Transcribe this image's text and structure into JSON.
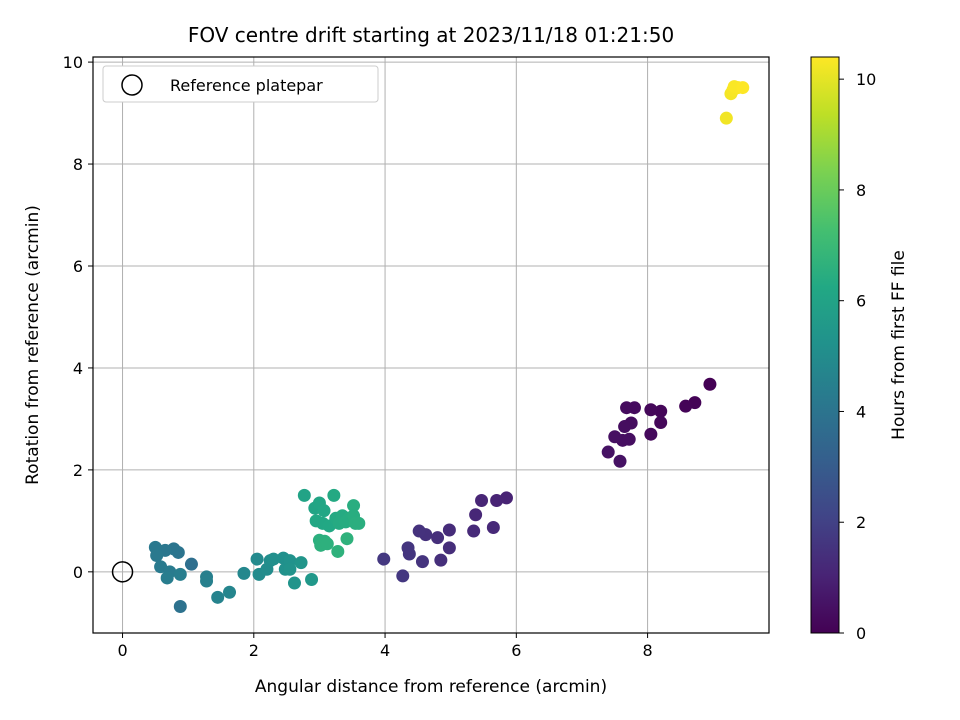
{
  "chart_data": {
    "type": "scatter",
    "title": "FOV centre drift starting at 2023/11/18 01:21:50",
    "xlabel": "Angular distance from reference (arcmin)",
    "ylabel": "Rotation from reference (arcmin)",
    "xlim": [
      -0.45,
      9.85
    ],
    "ylim": [
      -1.2,
      10.1
    ],
    "xticks": [
      0,
      2,
      4,
      6,
      8
    ],
    "yticks": [
      0,
      2,
      4,
      6,
      8,
      10
    ],
    "grid": true,
    "legend": {
      "placement": "top-left",
      "entries": [
        "Reference platepar"
      ]
    },
    "reference_point": {
      "x": 0,
      "y": 0
    },
    "colorbar": {
      "label": "Hours from first FF file",
      "range": [
        0,
        10.4
      ],
      "ticks": [
        0,
        2,
        4,
        6,
        8,
        10
      ],
      "colormap": "viridis"
    },
    "points": [
      {
        "x": 8.95,
        "y": 3.68,
        "c": 0.0
      },
      {
        "x": 8.72,
        "y": 3.32,
        "c": 0.05
      },
      {
        "x": 8.58,
        "y": 3.25,
        "c": 0.1
      },
      {
        "x": 8.2,
        "y": 3.15,
        "c": 0.15
      },
      {
        "x": 8.05,
        "y": 3.18,
        "c": 0.2
      },
      {
        "x": 8.2,
        "y": 2.93,
        "c": 0.2
      },
      {
        "x": 8.05,
        "y": 2.7,
        "c": 0.25
      },
      {
        "x": 7.8,
        "y": 3.22,
        "c": 0.3
      },
      {
        "x": 7.68,
        "y": 3.22,
        "c": 0.3
      },
      {
        "x": 7.75,
        "y": 2.92,
        "c": 0.35
      },
      {
        "x": 7.65,
        "y": 2.85,
        "c": 0.35
      },
      {
        "x": 7.72,
        "y": 2.6,
        "c": 0.4
      },
      {
        "x": 7.62,
        "y": 2.58,
        "c": 0.4
      },
      {
        "x": 7.5,
        "y": 2.65,
        "c": 0.45
      },
      {
        "x": 7.4,
        "y": 2.35,
        "c": 0.5
      },
      {
        "x": 7.58,
        "y": 2.17,
        "c": 0.5
      },
      {
        "x": 5.85,
        "y": 1.45,
        "c": 1.0
      },
      {
        "x": 5.7,
        "y": 1.4,
        "c": 1.05
      },
      {
        "x": 5.47,
        "y": 1.4,
        "c": 1.1
      },
      {
        "x": 5.38,
        "y": 1.12,
        "c": 1.15
      },
      {
        "x": 5.65,
        "y": 0.87,
        "c": 1.2
      },
      {
        "x": 5.35,
        "y": 0.8,
        "c": 1.25
      },
      {
        "x": 4.98,
        "y": 0.82,
        "c": 1.3
      },
      {
        "x": 4.98,
        "y": 0.47,
        "c": 1.35
      },
      {
        "x": 4.85,
        "y": 0.23,
        "c": 1.4
      },
      {
        "x": 4.8,
        "y": 0.67,
        "c": 1.4
      },
      {
        "x": 4.62,
        "y": 0.73,
        "c": 1.45
      },
      {
        "x": 4.52,
        "y": 0.8,
        "c": 1.5
      },
      {
        "x": 4.57,
        "y": 0.2,
        "c": 1.55
      },
      {
        "x": 4.37,
        "y": 0.35,
        "c": 1.6
      },
      {
        "x": 4.35,
        "y": 0.47,
        "c": 1.6
      },
      {
        "x": 4.27,
        "y": -0.08,
        "c": 1.65
      },
      {
        "x": 3.98,
        "y": 0.25,
        "c": 1.7
      },
      {
        "x": 1.05,
        "y": 0.15,
        "c": 3.8
      },
      {
        "x": 0.88,
        "y": -0.68,
        "c": 3.9
      },
      {
        "x": 0.85,
        "y": 0.38,
        "c": 4.0
      },
      {
        "x": 0.78,
        "y": 0.45,
        "c": 4.05
      },
      {
        "x": 0.65,
        "y": 0.42,
        "c": 4.1
      },
      {
        "x": 0.5,
        "y": 0.48,
        "c": 4.15
      },
      {
        "x": 0.52,
        "y": 0.32,
        "c": 4.2
      },
      {
        "x": 0.58,
        "y": 0.1,
        "c": 4.25
      },
      {
        "x": 0.72,
        "y": 0.0,
        "c": 4.3
      },
      {
        "x": 0.68,
        "y": -0.12,
        "c": 4.35
      },
      {
        "x": 0.88,
        "y": -0.05,
        "c": 4.4
      },
      {
        "x": 1.28,
        "y": -0.1,
        "c": 4.45
      },
      {
        "x": 1.28,
        "y": -0.18,
        "c": 4.5
      },
      {
        "x": 1.45,
        "y": -0.5,
        "c": 4.6
      },
      {
        "x": 1.63,
        "y": -0.4,
        "c": 4.7
      },
      {
        "x": 1.85,
        "y": -0.03,
        "c": 4.8
      },
      {
        "x": 2.05,
        "y": 0.25,
        "c": 4.9
      },
      {
        "x": 2.08,
        "y": -0.05,
        "c": 4.95
      },
      {
        "x": 2.2,
        "y": 0.05,
        "c": 5.0
      },
      {
        "x": 2.25,
        "y": 0.22,
        "c": 5.05
      },
      {
        "x": 2.3,
        "y": 0.25,
        "c": 5.1
      },
      {
        "x": 2.45,
        "y": 0.27,
        "c": 5.15
      },
      {
        "x": 2.48,
        "y": 0.05,
        "c": 5.2
      },
      {
        "x": 2.55,
        "y": 0.22,
        "c": 5.25
      },
      {
        "x": 2.55,
        "y": 0.05,
        "c": 5.3
      },
      {
        "x": 2.62,
        "y": -0.22,
        "c": 5.35
      },
      {
        "x": 2.72,
        "y": 0.18,
        "c": 5.4
      },
      {
        "x": 2.88,
        "y": -0.15,
        "c": 5.5
      },
      {
        "x": 2.77,
        "y": 1.5,
        "c": 6.0
      },
      {
        "x": 2.93,
        "y": 1.25,
        "c": 6.05
      },
      {
        "x": 3.0,
        "y": 1.35,
        "c": 6.1
      },
      {
        "x": 3.07,
        "y": 1.2,
        "c": 6.15
      },
      {
        "x": 2.95,
        "y": 1.0,
        "c": 6.2
      },
      {
        "x": 3.05,
        "y": 0.95,
        "c": 6.2
      },
      {
        "x": 3.15,
        "y": 0.9,
        "c": 6.25
      },
      {
        "x": 3.22,
        "y": 1.5,
        "c": 6.3
      },
      {
        "x": 3.25,
        "y": 1.05,
        "c": 6.3
      },
      {
        "x": 3.3,
        "y": 0.95,
        "c": 6.35
      },
      {
        "x": 3.35,
        "y": 1.1,
        "c": 6.35
      },
      {
        "x": 3.4,
        "y": 0.98,
        "c": 6.4
      },
      {
        "x": 3.45,
        "y": 1.05,
        "c": 6.4
      },
      {
        "x": 3.52,
        "y": 1.3,
        "c": 6.45
      },
      {
        "x": 3.52,
        "y": 1.1,
        "c": 6.45
      },
      {
        "x": 3.55,
        "y": 0.95,
        "c": 6.5
      },
      {
        "x": 3.6,
        "y": 0.95,
        "c": 6.5
      },
      {
        "x": 3.0,
        "y": 0.62,
        "c": 6.55
      },
      {
        "x": 3.08,
        "y": 0.6,
        "c": 6.55
      },
      {
        "x": 3.02,
        "y": 0.52,
        "c": 6.6
      },
      {
        "x": 3.12,
        "y": 0.55,
        "c": 6.6
      },
      {
        "x": 3.28,
        "y": 0.4,
        "c": 6.65
      },
      {
        "x": 3.42,
        "y": 0.65,
        "c": 6.65
      },
      {
        "x": 9.2,
        "y": 8.9,
        "c": 10.2
      },
      {
        "x": 9.27,
        "y": 9.38,
        "c": 10.25
      },
      {
        "x": 9.3,
        "y": 9.45,
        "c": 10.3
      },
      {
        "x": 9.32,
        "y": 9.52,
        "c": 10.35
      },
      {
        "x": 9.38,
        "y": 9.5,
        "c": 10.35
      },
      {
        "x": 9.45,
        "y": 9.5,
        "c": 10.4
      }
    ]
  }
}
